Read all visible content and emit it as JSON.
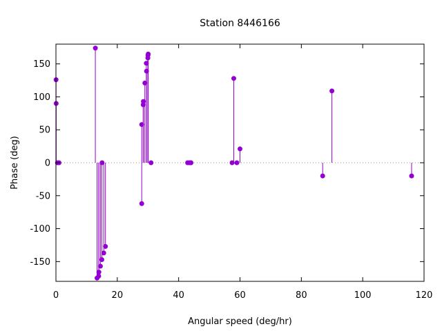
{
  "chart_data": {
    "type": "scatter",
    "style": "impulses-with-points",
    "title": "Station 8446166",
    "xlabel": "Angular speed (deg/hr)",
    "ylabel": "Phase (deg)",
    "xlim": [
      0,
      120
    ],
    "ylim": [
      -180,
      180
    ],
    "xticks": [
      0,
      20,
      40,
      60,
      80,
      100,
      120
    ],
    "yticks": [
      -150,
      -100,
      -50,
      0,
      50,
      100,
      150
    ],
    "zero_line": "dotted",
    "grid": false,
    "color": "#9400d3",
    "series": [
      {
        "points": [
          [
            0.04,
            126
          ],
          [
            0.08,
            90
          ],
          [
            0.5,
            0
          ],
          [
            1.0,
            0
          ],
          [
            12.85,
            174
          ],
          [
            13.4,
            -175
          ],
          [
            13.94,
            -172
          ],
          [
            14.0,
            -166
          ],
          [
            14.5,
            -157
          ],
          [
            14.96,
            -147
          ],
          [
            15.04,
            0
          ],
          [
            15.59,
            -137
          ],
          [
            16.14,
            -127
          ],
          [
            27.97,
            58
          ],
          [
            27.97,
            -62
          ],
          [
            28.44,
            88
          ],
          [
            28.51,
            93
          ],
          [
            28.98,
            121
          ],
          [
            29.46,
            151
          ],
          [
            29.53,
            139
          ],
          [
            29.96,
            159
          ],
          [
            30.0,
            163
          ],
          [
            30.08,
            165
          ],
          [
            31.0,
            0
          ],
          [
            42.93,
            0
          ],
          [
            43.48,
            0
          ],
          [
            43.94,
            0
          ],
          [
            44.03,
            0
          ],
          [
            57.42,
            0
          ],
          [
            57.97,
            128
          ],
          [
            58.98,
            0
          ],
          [
            60.0,
            21
          ],
          [
            86.95,
            -20
          ],
          [
            89.96,
            109
          ],
          [
            115.94,
            -20
          ]
        ]
      }
    ]
  }
}
